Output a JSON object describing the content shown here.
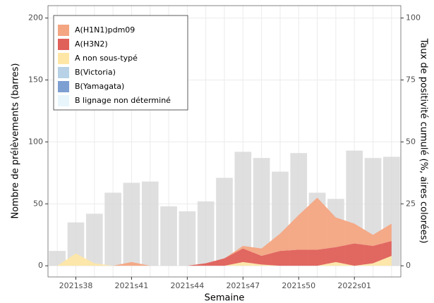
{
  "chart_data": {
    "type": "bar-area",
    "x_label": "Semaine",
    "y_label": "Nombre de prélèvements (barres)",
    "y2_label": "Taux de positivité cumulé (%, aires colorées)",
    "categories": [
      null,
      "2021s38",
      null,
      null,
      "2021s41",
      null,
      null,
      "2021s44",
      null,
      null,
      "2021s47",
      null,
      null,
      "2021s50",
      null,
      null,
      "2022s01",
      null,
      null
    ],
    "bar_color": "#d9d9d9",
    "values": [
      12,
      35,
      42,
      59,
      67,
      68,
      48,
      44,
      52,
      71,
      92,
      87,
      76,
      91,
      59,
      54,
      93,
      87,
      88
    ],
    "series": [
      {
        "name": "A(H1N1)pdm09",
        "color": "#f4a582",
        "axis": "y2",
        "values": [
          0,
          0,
          0,
          0,
          1.5,
          0,
          0,
          0,
          0,
          0,
          1,
          3,
          7,
          14,
          21,
          12,
          8,
          4.5,
          7
        ]
      },
      {
        "name": "A(H3N2)",
        "color": "#e0605a",
        "axis": "y2",
        "values": [
          0,
          0,
          0,
          0,
          0,
          0,
          0,
          0,
          1,
          3,
          5.5,
          3.5,
          6,
          6.5,
          6.5,
          6,
          9,
          7,
          6
        ]
      },
      {
        "name": "A non sous-typé",
        "color": "#fde6a6",
        "axis": "y2",
        "values": [
          0,
          5,
          1,
          0,
          0,
          0,
          0,
          0,
          0,
          0,
          1.5,
          0.5,
          0,
          0,
          0,
          1.5,
          0,
          1,
          4
        ]
      },
      {
        "name": "B(Victoria)",
        "color": "#b7d2e6",
        "axis": "y2",
        "values": [
          0,
          0,
          0,
          0,
          0,
          0,
          0,
          0,
          0,
          0,
          0,
          0,
          0,
          0,
          0,
          0,
          0,
          0,
          0
        ]
      },
      {
        "name": "B(Yamagata)",
        "color": "#7e9fd1",
        "axis": "y2",
        "values": [
          0,
          0,
          0,
          0,
          0,
          0,
          0,
          0,
          0,
          0,
          0,
          0,
          0,
          0,
          0,
          0,
          0,
          0,
          0
        ]
      },
      {
        "name": "B lignage non déterminé",
        "color": "#e8f6fc",
        "axis": "y2",
        "values": [
          0,
          0,
          0,
          0,
          0,
          0,
          0,
          0,
          0,
          0,
          0,
          0,
          0,
          0,
          0,
          0,
          0,
          0,
          0
        ]
      }
    ],
    "ylim": [
      -9,
      210
    ],
    "yticks": [
      0,
      50,
      100,
      150,
      200
    ],
    "y2lim": [
      -4.5,
      105
    ],
    "y2ticks": [
      0,
      25,
      50,
      75,
      100
    ],
    "grid": true
  }
}
